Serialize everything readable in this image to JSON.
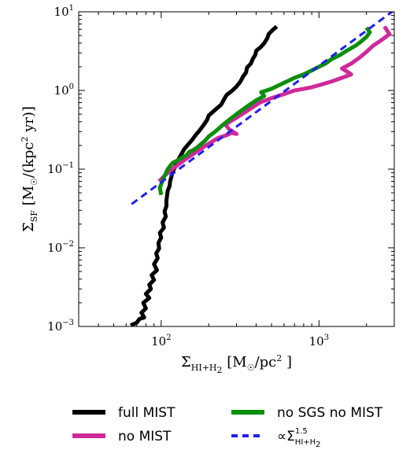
{
  "chart_data": {
    "type": "line",
    "xscale": "log",
    "yscale": "log",
    "xlim": [
      30,
      3000
    ],
    "ylim": [
      0.001,
      10
    ],
    "grid": false,
    "legend_placement": "below",
    "x_ticks": [
      {
        "value": 100,
        "base": "10",
        "exp": "2"
      },
      {
        "value": 1000,
        "base": "10",
        "exp": "3"
      }
    ],
    "y_ticks": [
      {
        "value": 0.001,
        "base": "10",
        "exp": "−3"
      },
      {
        "value": 0.01,
        "base": "10",
        "exp": "−2"
      },
      {
        "value": 0.1,
        "base": "10",
        "exp": "−1"
      },
      {
        "value": 1,
        "base": "10",
        "exp": "0"
      },
      {
        "value": 10,
        "base": "10",
        "exp": "1"
      }
    ],
    "xlabel": {
      "main": "Σ",
      "sub": "HI+H",
      "sub2": "2",
      "units": " [M",
      "sun": "☉",
      "units2": "/pc",
      "units_exp": "2",
      "units_end": " ]"
    },
    "ylabel": {
      "main": "Σ̇",
      "sub": "SF",
      "units": " [M",
      "sun": "☉",
      "units2": "/(kpc",
      "units_exp": "2",
      "units_end": " yr)]"
    },
    "series": [
      {
        "name": "full MIST",
        "color": "#000000",
        "style": "solid",
        "x": [
          64,
          70,
          73,
          78,
          75,
          80,
          77,
          84,
          80,
          86,
          84,
          90,
          87,
          94,
          90,
          95,
          93,
          97,
          96,
          100,
          98,
          104,
          102,
          107,
          105,
          108,
          108,
          109,
          110,
          113,
          114,
          116,
          118,
          122,
          125,
          130,
          135,
          140,
          148,
          157,
          165,
          175,
          185,
          195,
          200,
          218,
          240,
          250,
          260,
          283,
          300,
          318,
          330,
          345,
          350,
          370,
          380,
          395,
          400,
          430,
          450,
          470,
          480,
          510,
          540
        ],
        "y": [
          0.00103,
          0.00112,
          0.00125,
          0.0013,
          0.0015,
          0.0017,
          0.002,
          0.0023,
          0.0026,
          0.003,
          0.0034,
          0.0039,
          0.0045,
          0.0052,
          0.0062,
          0.0074,
          0.0085,
          0.0098,
          0.0115,
          0.0135,
          0.0155,
          0.018,
          0.021,
          0.025,
          0.029,
          0.034,
          0.04,
          0.046,
          0.053,
          0.061,
          0.07,
          0.08,
          0.092,
          0.105,
          0.12,
          0.138,
          0.158,
          0.18,
          0.205,
          0.235,
          0.27,
          0.31,
          0.36,
          0.42,
          0.48,
          0.56,
          0.66,
          0.77,
          0.88,
          1.0,
          1.12,
          1.3,
          1.5,
          1.7,
          1.95,
          2.2,
          2.5,
          2.85,
          3.2,
          3.6,
          4.0,
          4.6,
          5.2,
          5.9,
          6.5
        ]
      },
      {
        "name": "no MIST",
        "color": "#d1289a",
        "style": "solid",
        "x": [
          97,
          110,
          125,
          140,
          155,
          170,
          185,
          200,
          215,
          230,
          245,
          260,
          280,
          300,
          270,
          255,
          300,
          350,
          420,
          500,
          600,
          700,
          800,
          900,
          1050,
          1200,
          1400,
          1600,
          1500,
          1400,
          1600,
          1800,
          2000,
          2200,
          2500,
          2800,
          2600
        ],
        "y": [
          0.07,
          0.09,
          0.11,
          0.13,
          0.15,
          0.17,
          0.19,
          0.21,
          0.23,
          0.25,
          0.26,
          0.27,
          0.29,
          0.28,
          0.32,
          0.37,
          0.45,
          0.55,
          0.7,
          0.8,
          0.9,
          1.0,
          1.05,
          1.1,
          1.2,
          1.3,
          1.45,
          1.6,
          1.75,
          1.9,
          2.2,
          2.6,
          3.1,
          3.7,
          4.4,
          5.2,
          6.5
        ]
      },
      {
        "name": "no SGS no MIST",
        "color": "#0a8f0a",
        "style": "solid",
        "x": [
          100,
          98,
          103,
          110,
          118,
          128,
          135,
          145,
          150,
          160,
          170,
          180,
          190,
          200,
          220,
          240,
          260,
          280,
          320,
          360,
          400,
          450,
          430,
          500,
          550,
          600,
          650,
          700,
          800,
          900,
          1000,
          1100,
          1200,
          1350,
          1500,
          1700,
          1850,
          2000,
          2100,
          2000
        ],
        "y": [
          0.047,
          0.058,
          0.075,
          0.1,
          0.12,
          0.13,
          0.14,
          0.15,
          0.165,
          0.175,
          0.19,
          0.21,
          0.23,
          0.26,
          0.3,
          0.35,
          0.4,
          0.45,
          0.55,
          0.65,
          0.75,
          0.85,
          0.95,
          1.05,
          1.15,
          1.25,
          1.35,
          1.45,
          1.6,
          1.8,
          2.0,
          2.2,
          2.5,
          2.8,
          3.2,
          3.7,
          4.2,
          4.8,
          5.5,
          6.3
        ]
      },
      {
        "name": "∝Σ",
        "name_sup": "1.5",
        "name_sub": "HI+H",
        "name_sub2": "2",
        "color": "#1f1ff0",
        "style": "dashed",
        "x": [
          65,
          3000
        ],
        "y": [
          0.036,
          10.5
        ]
      }
    ]
  }
}
